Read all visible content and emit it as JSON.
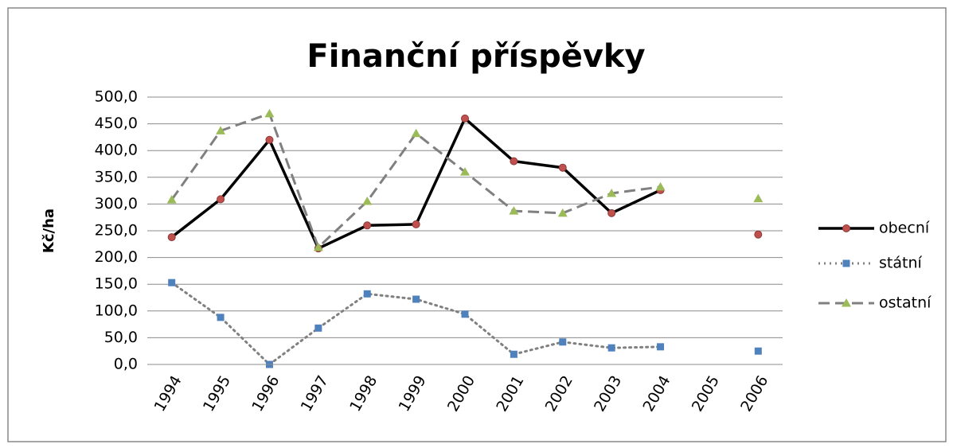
{
  "chart_data": {
    "type": "line",
    "title": "Finanční příspěvky",
    "ylabel": "Kč/ha",
    "categories": [
      "1994",
      "1995",
      "1996",
      "1997",
      "1998",
      "1999",
      "2000",
      "2001",
      "2002",
      "2003",
      "2004",
      "2005",
      "2006"
    ],
    "series": [
      {
        "name": "obecní",
        "color": "#000000",
        "marker_color": "#c0504d",
        "line_style": "solid",
        "marker": "circle",
        "values": [
          238,
          309,
          420,
          217,
          260,
          262,
          460,
          380,
          368,
          283,
          326,
          null,
          243
        ]
      },
      {
        "name": "státní",
        "color": "#808080",
        "marker_color": "#4f81bd",
        "line_style": "dotted",
        "marker": "square",
        "values": [
          153,
          88,
          0,
          68,
          132,
          122,
          94,
          19,
          42,
          31,
          33,
          null,
          25
        ]
      },
      {
        "name": "ostatní",
        "color": "#808080",
        "marker_color": "#9bbb59",
        "line_style": "dashed",
        "marker": "triangle",
        "values": [
          308,
          437,
          469,
          219,
          305,
          432,
          360,
          287,
          283,
          320,
          332,
          null,
          310
        ]
      }
    ],
    "ylim": [
      0,
      500
    ],
    "yticks": [
      {
        "value": 0,
        "label": "0,0"
      },
      {
        "value": 50,
        "label": "50,0"
      },
      {
        "value": 100,
        "label": "100,0"
      },
      {
        "value": 150,
        "label": "150,0"
      },
      {
        "value": 200,
        "label": "200,0"
      },
      {
        "value": 250,
        "label": "250,0"
      },
      {
        "value": 300,
        "label": "300,0"
      },
      {
        "value": 350,
        "label": "350,0"
      },
      {
        "value": 400,
        "label": "400,0"
      },
      {
        "value": 450,
        "label": "450,0"
      },
      {
        "value": 500,
        "label": "500,0"
      }
    ],
    "grid": true,
    "legend": "right"
  }
}
